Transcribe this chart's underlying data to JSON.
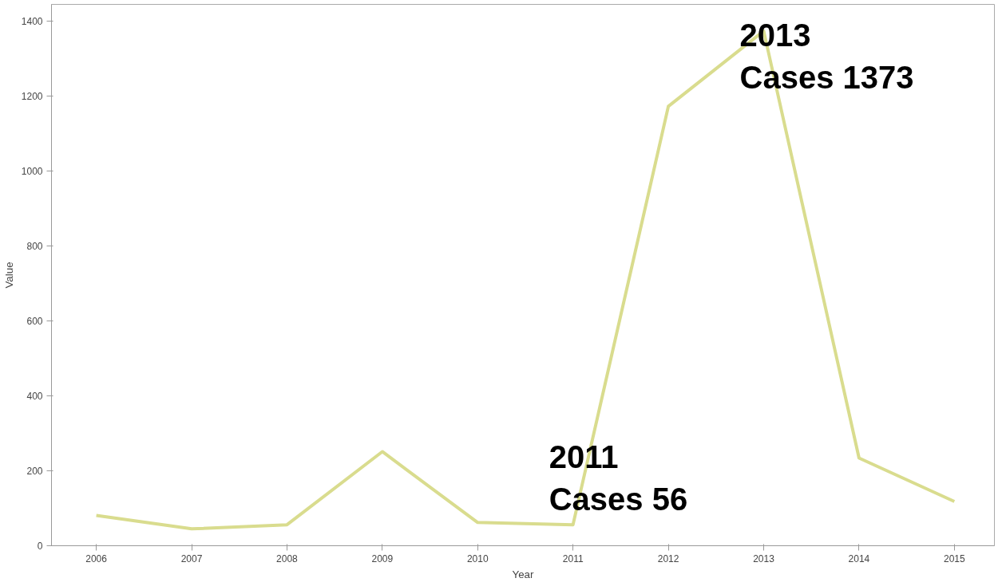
{
  "chart_data": {
    "type": "line",
    "xlabel": "Year",
    "ylabel": "Value",
    "categories": [
      "2006",
      "2007",
      "2008",
      "2009",
      "2010",
      "2011",
      "2012",
      "2013",
      "2014",
      "2015"
    ],
    "series": [
      {
        "color": "#d9dc8e",
        "values": [
          81,
          45,
          56,
          251,
          62,
          56,
          1172,
          1373,
          234,
          118
        ]
      }
    ],
    "ylim": [
      0,
      1444
    ],
    "yticks": [
      0,
      200,
      400,
      600,
      800,
      1000,
      1200,
      1400
    ],
    "grid": false,
    "annotations": [
      {
        "text": "2013\nCases 1373",
        "x": "2013",
        "y": 1373
      },
      {
        "text": "2011\nCases 56",
        "x": "2011",
        "y": 56
      }
    ]
  }
}
